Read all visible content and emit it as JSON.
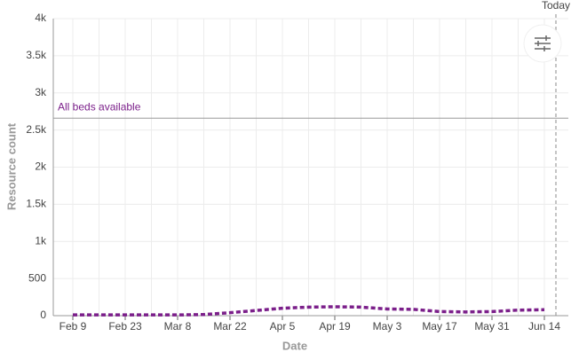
{
  "chart_data": {
    "type": "line",
    "y_axis_title": "Resource count",
    "x_axis_title": "Date",
    "categories": [
      "Feb 9",
      null,
      "Feb 23",
      null,
      "Mar 8",
      null,
      "Mar 22",
      null,
      "Apr 5",
      null,
      "Apr 19",
      null,
      "May 3",
      null,
      "May 17",
      null,
      "May 31",
      null,
      "Jun 14"
    ],
    "series": [
      {
        "color": "#7b1f8a",
        "values": [
          10,
          10,
          10,
          10,
          10,
          15,
          40,
          70,
          100,
          115,
          120,
          115,
          90,
          85,
          55,
          50,
          55,
          75,
          80
        ]
      }
    ],
    "ylim": [
      0,
      4000
    ],
    "yticks": [
      0,
      500,
      {
        "value": 1000,
        "label": "1k"
      },
      {
        "value": 1500,
        "label": "1.5k"
      },
      {
        "value": 2000,
        "label": "2k"
      },
      {
        "value": 2500,
        "label": "2.5k"
      },
      {
        "value": 3000,
        "label": "3k"
      },
      {
        "value": 3500,
        "label": "3.5k"
      },
      {
        "value": 4000,
        "label": "4k"
      }
    ],
    "threshold": {
      "label": "All beds available",
      "value": 2660,
      "color": "#7b1f8a"
    },
    "today_label": "Today",
    "grid": true
  }
}
